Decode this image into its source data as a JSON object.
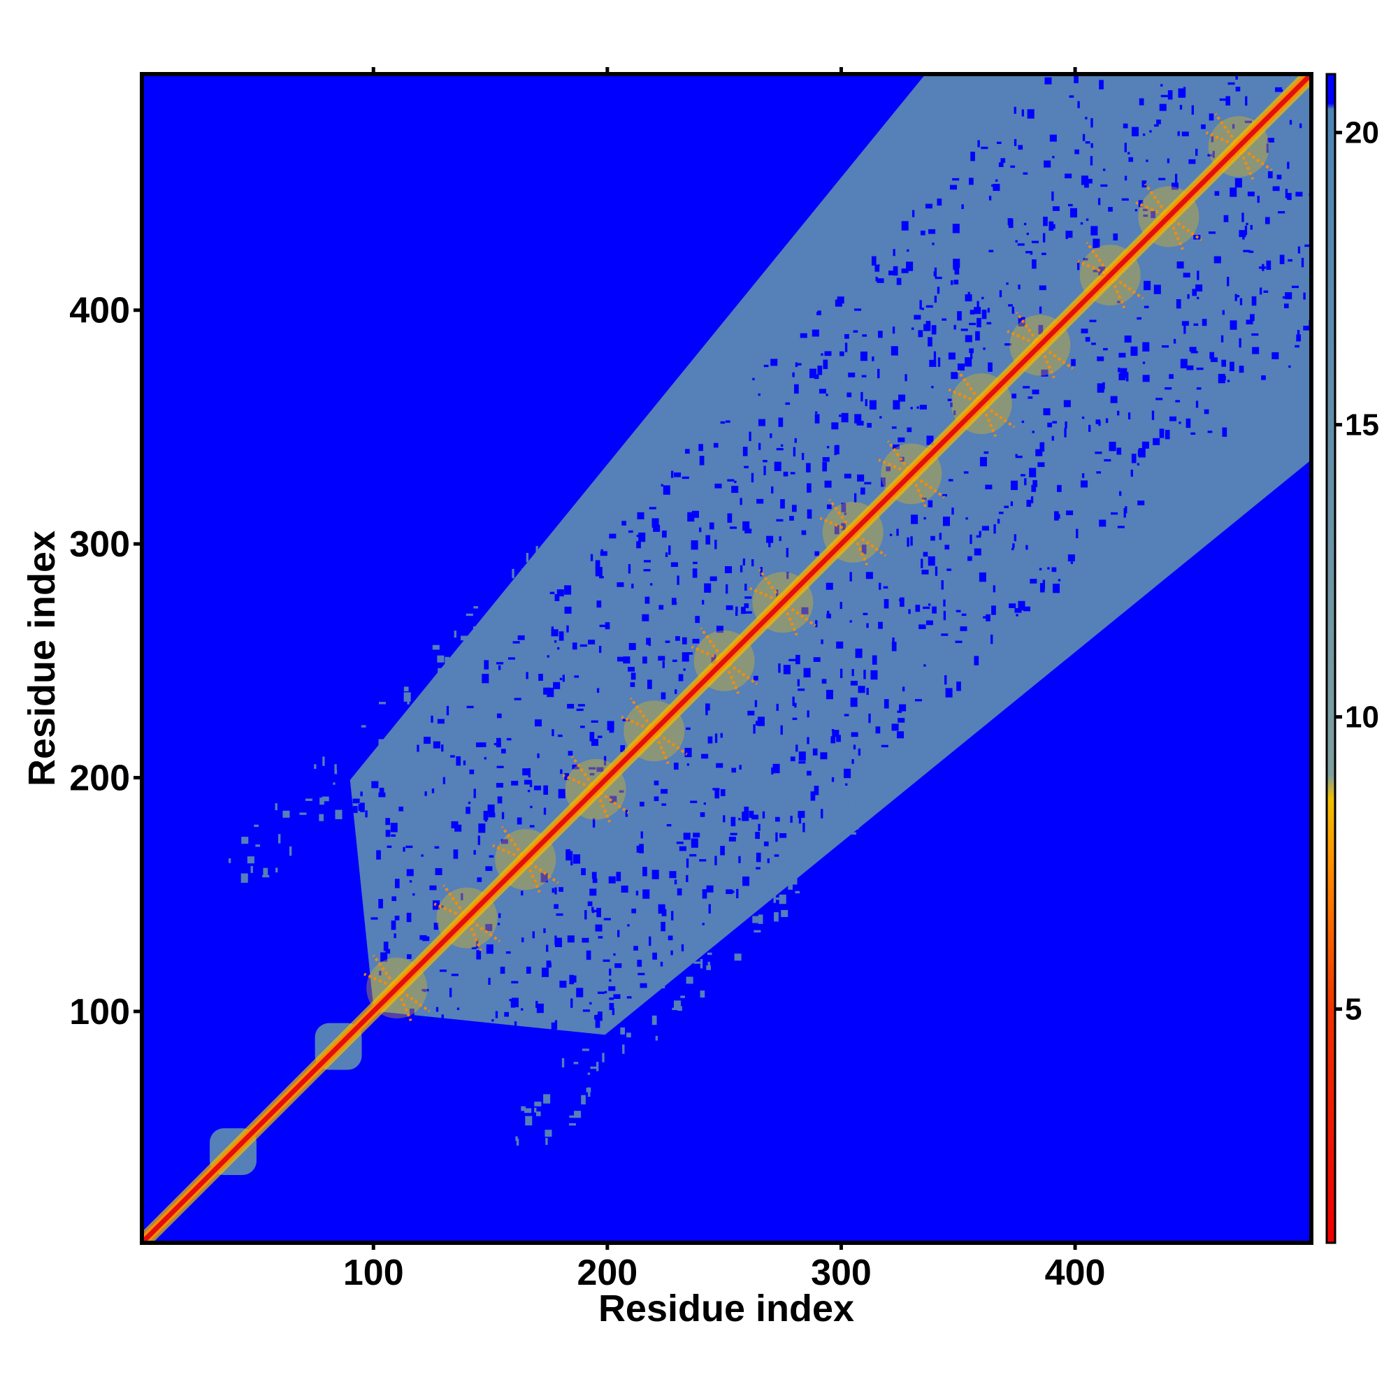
{
  "chart_data": {
    "type": "heatmap",
    "title": "",
    "xlabel": "Residue index",
    "ylabel": "Residue index",
    "xlim": [
      1,
      501
    ],
    "ylim": [
      1,
      501
    ],
    "x_ticks": [
      100,
      200,
      300,
      400
    ],
    "y_ticks": [
      100,
      200,
      300,
      400
    ],
    "colorbar": {
      "range": [
        1,
        21
      ],
      "ticks": [
        5,
        10,
        15,
        20
      ],
      "colors": [
        "#ee0000",
        "#ff8c00",
        "#f0c000",
        "#7f9fa0",
        "#4f84b4",
        "#0000ff"
      ]
    },
    "background_color": "#0000ff",
    "contact_color": "#5580b8",
    "diagonal_color": "#e01010",
    "blocks": [
      {
        "start": 30,
        "end": 50,
        "value": 14
      },
      {
        "start": 75,
        "end": 95,
        "value": 14
      },
      {
        "start": 100,
        "end": 501,
        "value": 16,
        "band_width": 110
      }
    ],
    "hotspots": [
      {
        "x": 110,
        "y": 110
      },
      {
        "x": 140,
        "y": 140
      },
      {
        "x": 165,
        "y": 165
      },
      {
        "x": 195,
        "y": 195
      },
      {
        "x": 220,
        "y": 220
      },
      {
        "x": 250,
        "y": 250
      },
      {
        "x": 275,
        "y": 275
      },
      {
        "x": 305,
        "y": 305
      },
      {
        "x": 330,
        "y": 330
      },
      {
        "x": 360,
        "y": 360
      },
      {
        "x": 385,
        "y": 385
      },
      {
        "x": 415,
        "y": 415
      },
      {
        "x": 440,
        "y": 440
      },
      {
        "x": 470,
        "y": 470
      }
    ]
  }
}
